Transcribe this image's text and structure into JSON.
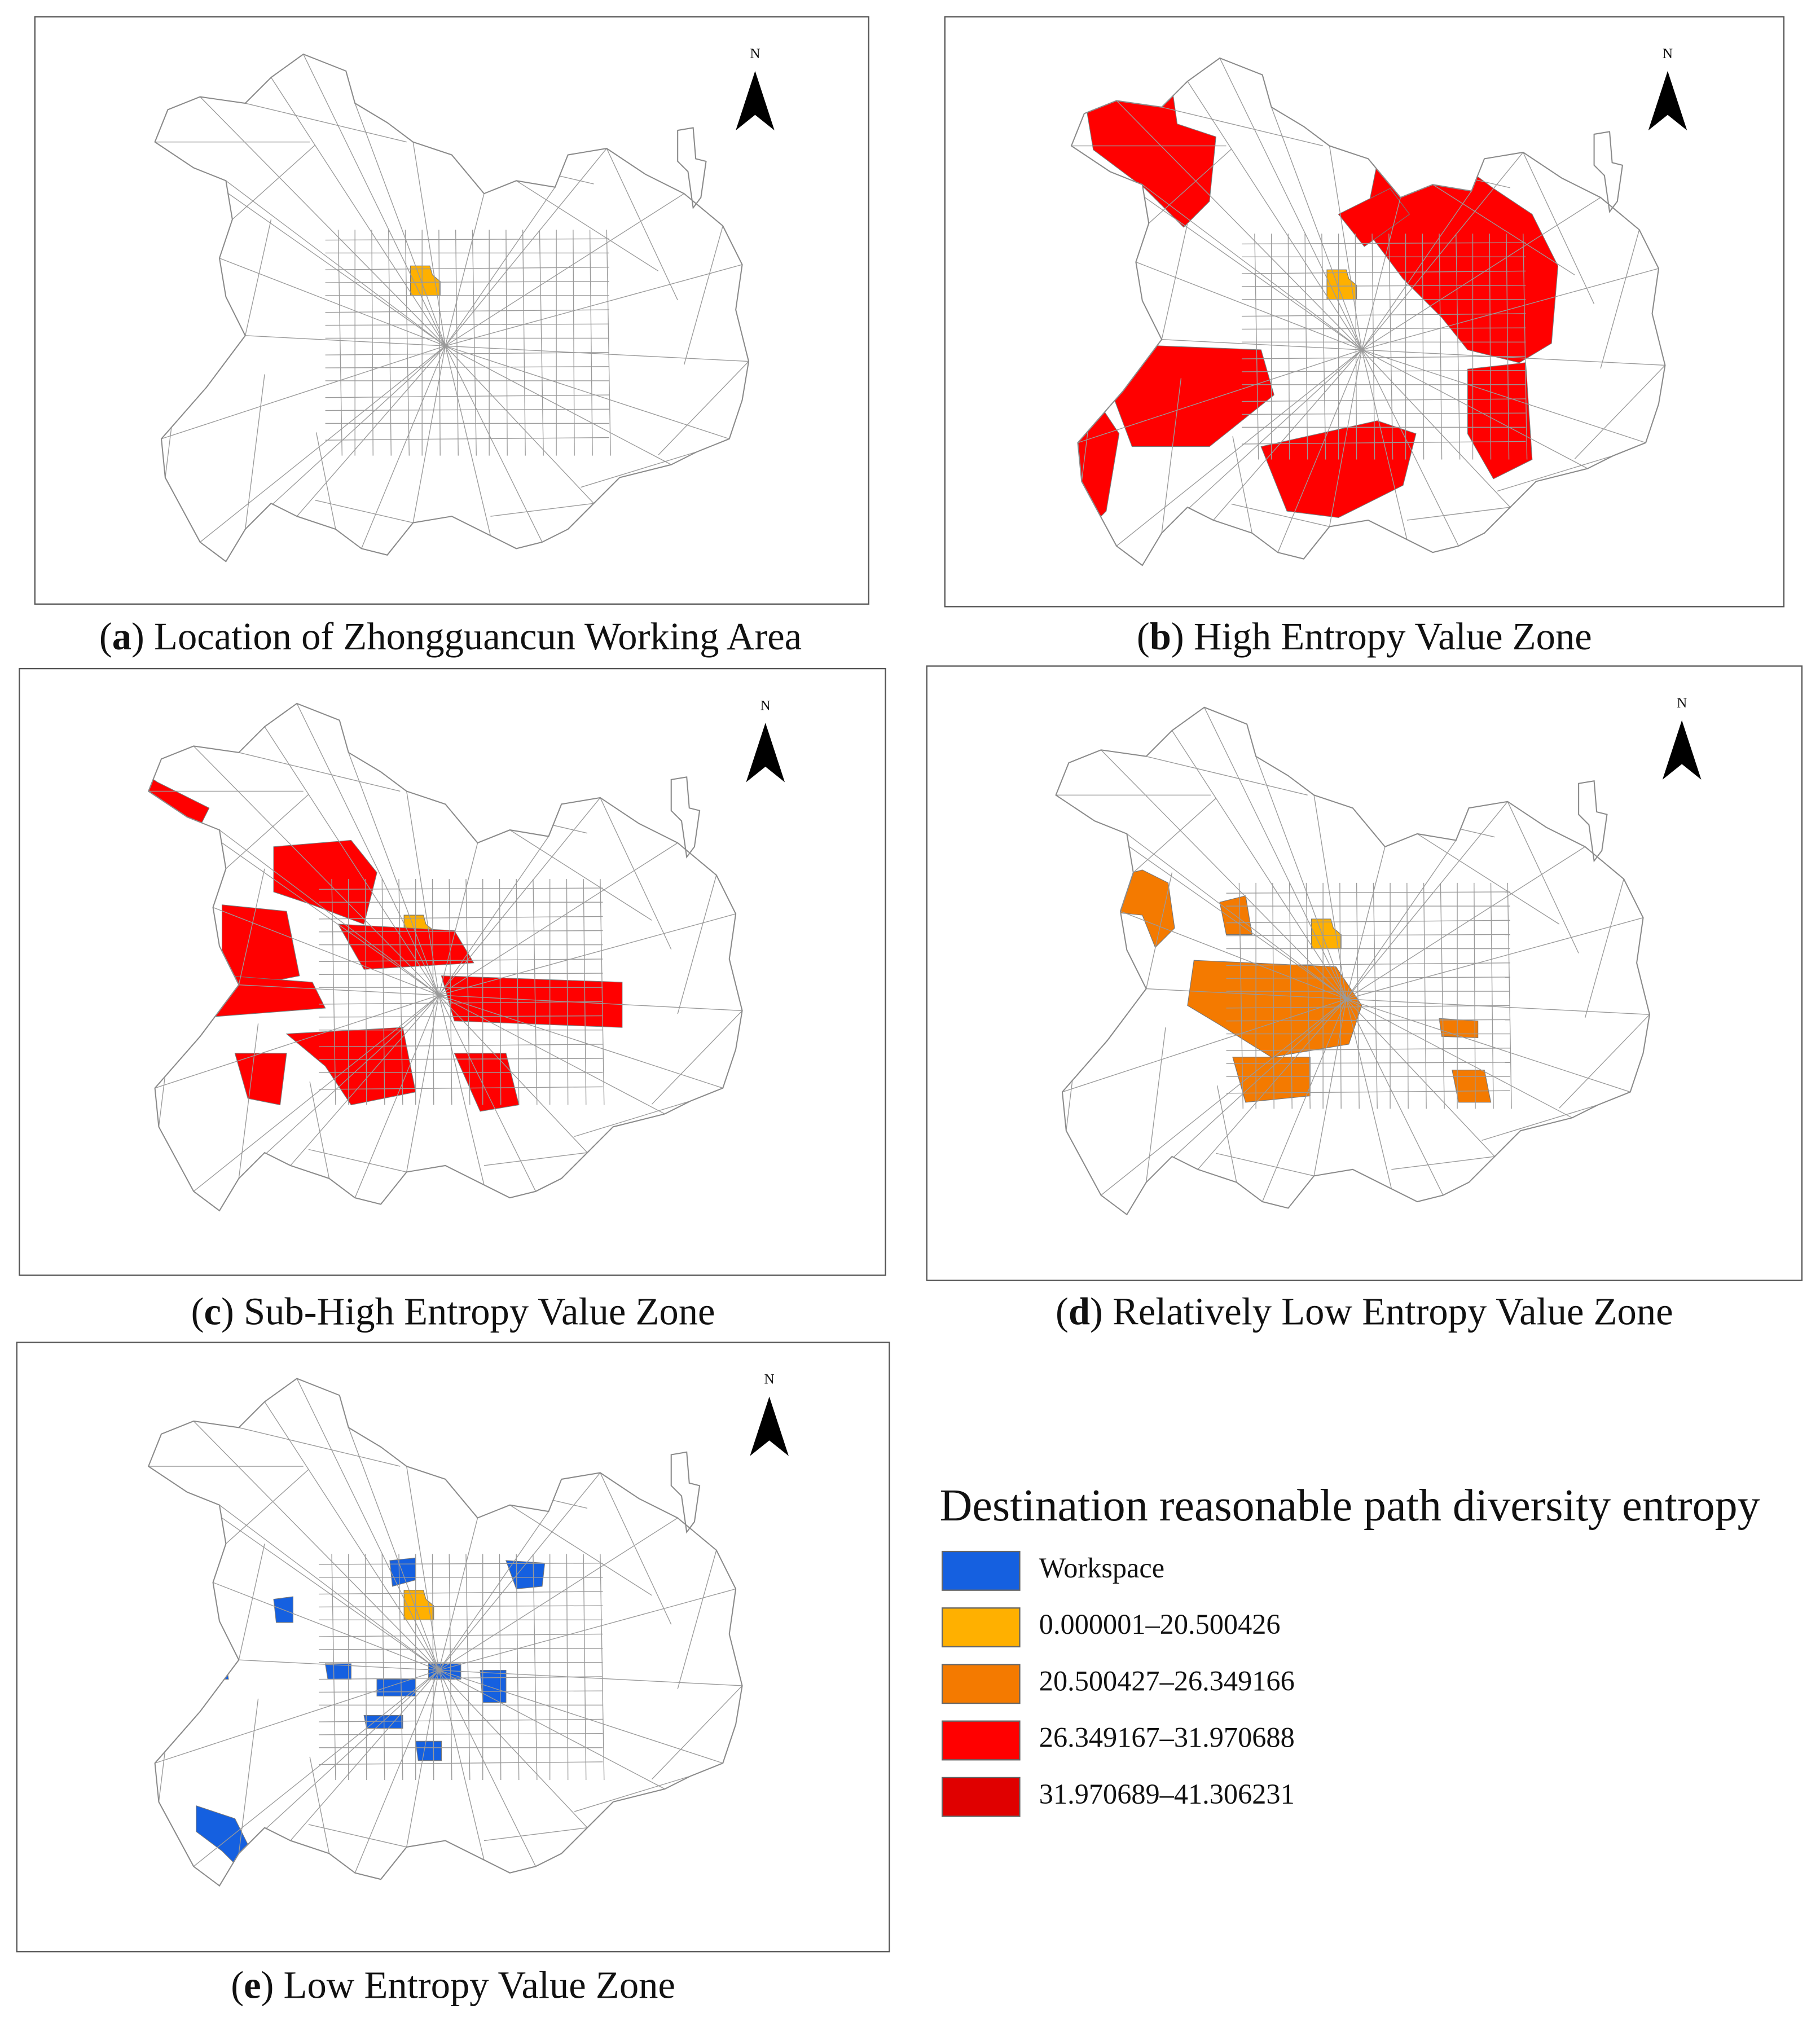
{
  "north_label": "N",
  "panels": [
    {
      "caption": [
        "(",
        "a",
        ") Location of Zhongguancun Working Area"
      ]
    },
    {
      "caption": [
        "(",
        "b",
        ") High Entropy Value Zone"
      ]
    },
    {
      "caption": [
        "(",
        "c",
        ") Sub-High Entropy Value Zone"
      ]
    },
    {
      "caption": [
        "(",
        "d",
        ") Relatively Low Entropy Value Zone"
      ]
    },
    {
      "caption": [
        "(",
        "e",
        ") Low Entropy Value Zone"
      ]
    }
  ],
  "legend": {
    "title": "Destination reasonable path diversity entropy",
    "items": [
      {
        "label": "Workspace",
        "color": "#1560e0"
      },
      {
        "label": "0.000001–20.500426",
        "color": "#ffb000"
      },
      {
        "label": "20.500427–26.349166",
        "color": "#f47a00"
      },
      {
        "label": "26.349167–31.970688",
        "color": "#ff0000"
      },
      {
        "label": "31.970689–41.306231",
        "color": "#e00000"
      }
    ]
  }
}
